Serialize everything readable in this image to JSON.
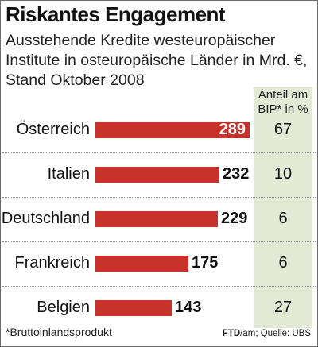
{
  "chart_data": {
    "type": "bar",
    "orientation": "horizontal",
    "title": "Riskantes Engagement",
    "subtitle": "Ausstehende Kredite westeuropäischer Institute in osteuropäische Länder in Mrd. €, Stand Oktober 2008",
    "categories": [
      "Österreich",
      "Italien",
      "Deutschland",
      "Frankreich",
      "Belgien"
    ],
    "values": [
      289,
      232,
      229,
      175,
      143
    ],
    "value_labels": [
      "289",
      "232",
      "229",
      "175",
      "143"
    ],
    "bar_color": "#c6322a",
    "xlim": [
      0,
      289
    ],
    "grid": false,
    "side_column": {
      "header": "Anteil am BIP* in %",
      "values": [
        "67",
        "10",
        "6",
        "6",
        "27"
      ],
      "background": "#e4e9d6"
    },
    "footnote": "*Bruttoinlandsprodukt",
    "source_prefix": "FTD",
    "source_rest": "/am; Quelle: UBS"
  }
}
